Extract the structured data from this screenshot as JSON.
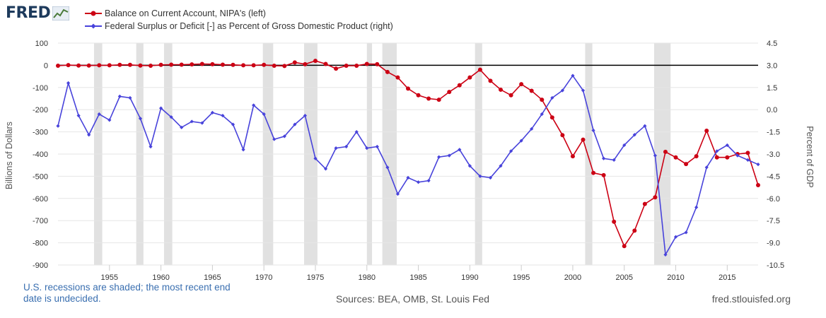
{
  "header": {
    "logo_text": "FRED",
    "logo_icon": "line-chart-icon"
  },
  "chart_data": {
    "type": "line",
    "x_start": 1950,
    "x_end": 2018,
    "x_ticks": [
      1955,
      1960,
      1965,
      1970,
      1975,
      1980,
      1985,
      1990,
      1995,
      2000,
      2005,
      2010,
      2015
    ],
    "left_axis": {
      "label": "Billions of Dollars",
      "range": [
        -900,
        100
      ],
      "ticks": [
        100,
        0,
        -100,
        -200,
        -300,
        -400,
        -500,
        -600,
        -700,
        -800,
        -900
      ]
    },
    "right_axis": {
      "label": "Percent of GDP",
      "range": [
        -10.5,
        4.5
      ],
      "ticks": [
        "4.5",
        "3.0",
        "1.5",
        "0.0",
        "-1.5",
        "-3.0",
        "-4.5",
        "-6.0",
        "-7.5",
        "-9.0",
        "-10.5"
      ]
    },
    "series": [
      {
        "name": "Balance on Current Account, NIPA's (left)",
        "color": "#cc0014",
        "axis": "left",
        "x": [
          1950,
          1951,
          1952,
          1953,
          1954,
          1955,
          1956,
          1957,
          1958,
          1959,
          1960,
          1961,
          1962,
          1963,
          1964,
          1965,
          1966,
          1967,
          1968,
          1969,
          1970,
          1971,
          1972,
          1973,
          1974,
          1975,
          1976,
          1977,
          1978,
          1979,
          1980,
          1981,
          1982,
          1983,
          1984,
          1985,
          1986,
          1987,
          1988,
          1989,
          1990,
          1991,
          1992,
          1993,
          1994,
          1995,
          1996,
          1997,
          1998,
          1999,
          2000,
          2001,
          2002,
          2003,
          2004,
          2005,
          2006,
          2007,
          2008,
          2009,
          2010,
          2011,
          2012,
          2013,
          2014,
          2015,
          2016,
          2017,
          2018
        ],
        "values": [
          -2,
          1,
          -1,
          -1,
          0,
          0,
          2,
          2,
          -1,
          -2,
          2,
          3,
          3,
          4,
          6,
          5,
          3,
          2,
          0,
          0,
          2,
          -2,
          -3,
          13,
          5,
          20,
          6,
          -15,
          -2,
          -2,
          6,
          5,
          -30,
          -55,
          -105,
          -135,
          -150,
          -155,
          -120,
          -90,
          -55,
          -20,
          -70,
          -110,
          -135,
          -85,
          -115,
          -155,
          -235,
          -315,
          -410,
          -335,
          -485,
          -495,
          -705,
          -815,
          -745,
          -625,
          -595,
          -390,
          -415,
          -445,
          -410,
          -295,
          -415,
          -415,
          -400,
          -395,
          -540
        ]
      },
      {
        "name": "Federal Surplus or Deficit [-] as Percent of Gross Domestic Product (right)",
        "color": "#4843db",
        "axis": "right",
        "x": [
          1950,
          1951,
          1952,
          1953,
          1954,
          1955,
          1956,
          1957,
          1958,
          1959,
          1960,
          1961,
          1962,
          1963,
          1964,
          1965,
          1966,
          1967,
          1968,
          1969,
          1970,
          1971,
          1972,
          1973,
          1974,
          1975,
          1976,
          1977,
          1978,
          1979,
          1980,
          1981,
          1982,
          1983,
          1984,
          1985,
          1986,
          1987,
          1988,
          1989,
          1990,
          1991,
          1992,
          1993,
          1994,
          1995,
          1996,
          1997,
          1998,
          1999,
          2000,
          2001,
          2002,
          2003,
          2004,
          2005,
          2006,
          2007,
          2008,
          2009,
          2010,
          2011,
          2012,
          2013,
          2014,
          2015,
          2016,
          2017,
          2018
        ],
        "values": [
          -1.1,
          1.8,
          -0.4,
          -1.7,
          -0.3,
          -0.7,
          0.9,
          0.8,
          -0.6,
          -2.5,
          0.1,
          -0.5,
          -1.2,
          -0.8,
          -0.9,
          -0.2,
          -0.4,
          -1.0,
          -2.7,
          0.3,
          -0.3,
          -2.0,
          -1.8,
          -1.0,
          -0.4,
          -3.3,
          -4.0,
          -2.6,
          -2.5,
          -1.5,
          -2.6,
          -2.5,
          -3.9,
          -5.7,
          -4.6,
          -4.9,
          -4.8,
          -3.2,
          -3.1,
          -2.7,
          -3.8,
          -4.5,
          -4.6,
          -3.8,
          -2.8,
          -2.1,
          -1.3,
          -0.3,
          0.8,
          1.3,
          2.3,
          1.3,
          -1.4,
          -3.3,
          -3.4,
          -2.4,
          -1.7,
          -1.1,
          -3.1,
          -9.8,
          -8.6,
          -8.3,
          -6.6,
          -3.9,
          -2.8,
          -2.4,
          -3.1,
          -3.4,
          -3.7
        ]
      }
    ],
    "recessions": [
      [
        1953.5,
        1954.3
      ],
      [
        1957.6,
        1958.3
      ],
      [
        1960.3,
        1961.1
      ],
      [
        1969.9,
        1970.9
      ],
      [
        1973.9,
        1975.2
      ],
      [
        1980.0,
        1980.5
      ],
      [
        1981.5,
        1982.9
      ],
      [
        1990.5,
        1991.2
      ],
      [
        2001.2,
        2001.9
      ],
      [
        2007.9,
        2009.5
      ]
    ],
    "zero_line": 0
  },
  "footer": {
    "recession_note": "U.S. recessions are shaded; the most recent end date is undecided.",
    "sources": "Sources: BEA, OMB, St. Louis Fed",
    "site": "fred.stlouisfed.org"
  }
}
